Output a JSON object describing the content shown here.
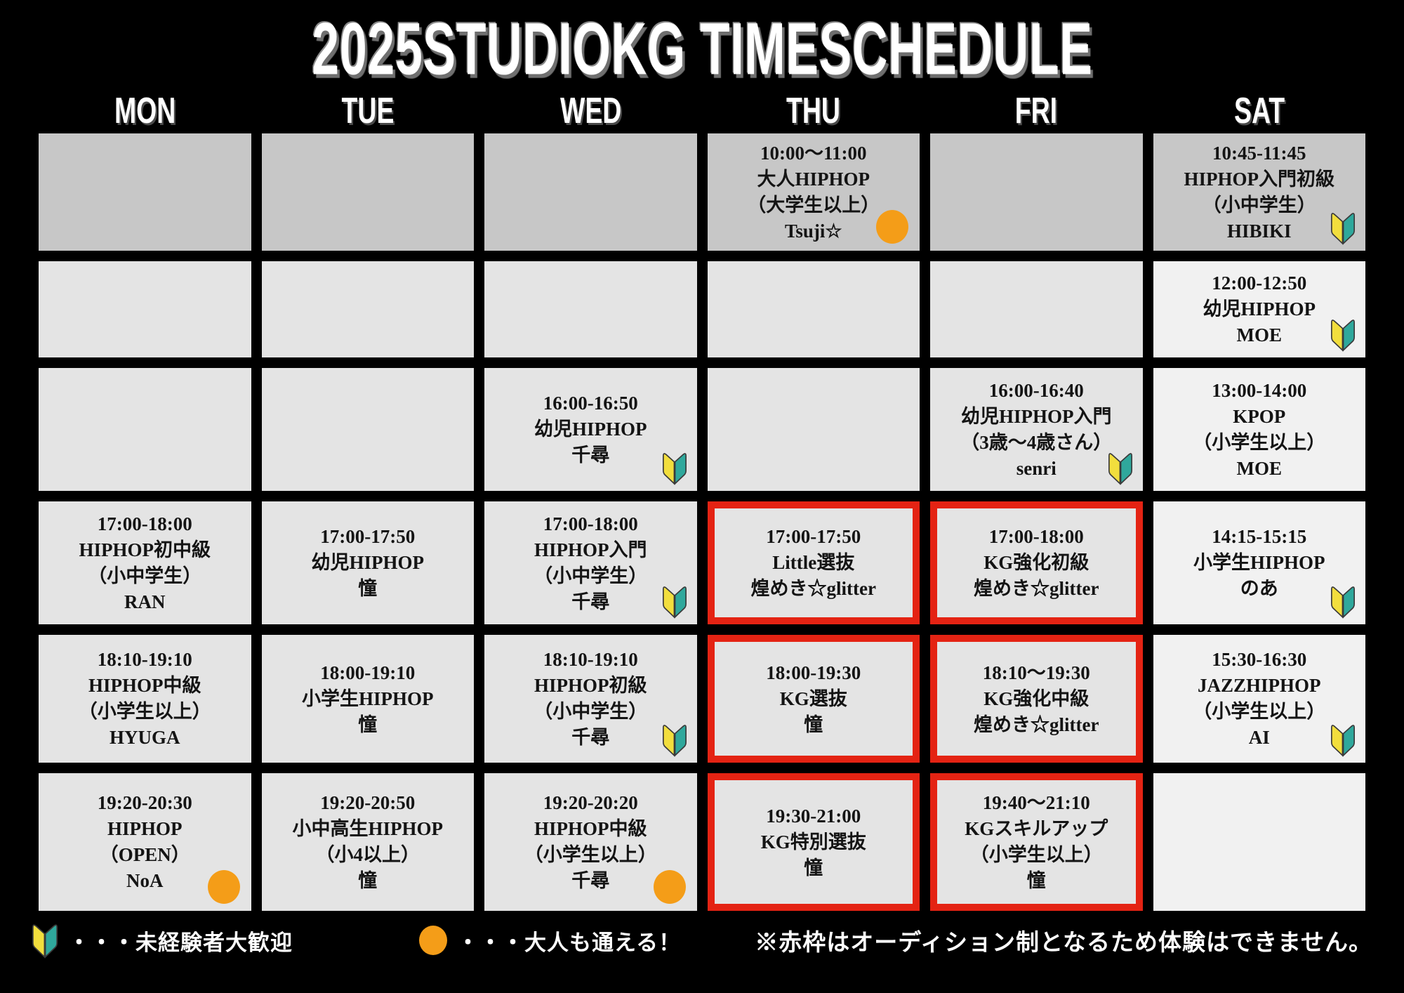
{
  "title": "2025STUDIOKG TIMESCHEDULE",
  "days": [
    "MON",
    "TUE",
    "WED",
    "THU",
    "FRI",
    "SAT"
  ],
  "colors": {
    "background": "#000000",
    "cell_dark": "#c7c7c7",
    "cell_mid": "#e4e4e4",
    "cell_light": "#f1f1f1",
    "highlight_red": "#e42313",
    "adult_orange": "#f49d18",
    "beginner_yellow": "#f2de3d",
    "beginner_teal": "#2fa89c",
    "text": "#141414"
  },
  "legend": {
    "beginner_label": "・・・未経験者大歓迎",
    "adult_label": "・・・大人も通える！",
    "note": "※赤枠はオーディション制となるため体験はできません。"
  },
  "grid": {
    "rows": [
      [
        {
          "shade": "dark"
        },
        {
          "shade": "dark"
        },
        {
          "shade": "dark"
        },
        {
          "shade": "dark",
          "lines": [
            "10:00～11:00",
            "大人HIPHOP",
            "（大学生以上）",
            "Tsuji☆"
          ],
          "mark": "adult"
        },
        {
          "shade": "dark"
        },
        {
          "shade": "dark",
          "lines": [
            "10:45-11:45",
            "HIPHOP入門初級",
            "（小中学生）",
            "HIBIKI"
          ],
          "mark": "beginner"
        }
      ],
      [
        {
          "shade": "mid"
        },
        {
          "shade": "mid"
        },
        {
          "shade": "mid"
        },
        {
          "shade": "mid"
        },
        {
          "shade": "mid"
        },
        {
          "shade": "light",
          "lines": [
            "12:00-12:50",
            "幼児HIPHOP",
            "MOE"
          ],
          "mark": "beginner"
        }
      ],
      [
        {
          "shade": "mid"
        },
        {
          "shade": "mid"
        },
        {
          "shade": "mid",
          "lines": [
            "16:00-16:50",
            "幼児HIPHOP",
            "千尋"
          ],
          "mark": "beginner"
        },
        {
          "shade": "mid"
        },
        {
          "shade": "mid",
          "lines": [
            "16:00-16:40",
            "幼児HIPHOP入門",
            "（3歳～4歳さん）",
            "senri"
          ],
          "mark": "beginner"
        },
        {
          "shade": "light",
          "lines": [
            "13:00-14:00",
            "KPOP",
            "（小学生以上）",
            "MOE"
          ]
        }
      ],
      [
        {
          "shade": "mid",
          "lines": [
            "17:00-18:00",
            "HIPHOP初中級",
            "（小中学生）",
            "RAN"
          ]
        },
        {
          "shade": "mid",
          "lines": [
            "17:00-17:50",
            "幼児HIPHOP",
            "憧"
          ]
        },
        {
          "shade": "mid",
          "lines": [
            "17:00-18:00",
            "HIPHOP入門",
            "（小中学生）",
            "千尋"
          ],
          "mark": "beginner"
        },
        {
          "shade": "mid",
          "lines": [
            "17:00-17:50",
            "Little選抜",
            "煌めき☆glitter"
          ],
          "highlight": true
        },
        {
          "shade": "mid",
          "lines": [
            "17:00-18:00",
            "KG強化初級",
            "煌めき☆glitter"
          ],
          "highlight": true
        },
        {
          "shade": "light",
          "lines": [
            "14:15-15:15",
            "小学生HIPHOP",
            "のあ"
          ],
          "mark": "beginner"
        }
      ],
      [
        {
          "shade": "mid",
          "lines": [
            "18:10-19:10",
            "HIPHOP中級",
            "（小学生以上）",
            "HYUGA"
          ]
        },
        {
          "shade": "mid",
          "lines": [
            "18:00-19:10",
            "小学生HIPHOP",
            "憧"
          ]
        },
        {
          "shade": "mid",
          "lines": [
            "18:10-19:10",
            "HIPHOP初級",
            "（小中学生）",
            "千尋"
          ],
          "mark": "beginner"
        },
        {
          "shade": "mid",
          "lines": [
            "18:00-19:30",
            "KG選抜",
            "憧"
          ],
          "highlight": true
        },
        {
          "shade": "mid",
          "lines": [
            "18:10～19:30",
            "KG強化中級",
            "煌めき☆glitter"
          ],
          "highlight": true
        },
        {
          "shade": "light",
          "lines": [
            "15:30-16:30",
            "JAZZHIPHOP",
            "（小学生以上）",
            "AI"
          ],
          "mark": "beginner"
        }
      ],
      [
        {
          "shade": "mid",
          "lines": [
            "19:20-20:30",
            "HIPHOP",
            "（OPEN）",
            "NoA"
          ],
          "mark": "adult"
        },
        {
          "shade": "mid",
          "lines": [
            "19:20-20:50",
            "小中高生HIPHOP",
            "（小4以上）",
            "憧"
          ]
        },
        {
          "shade": "mid",
          "lines": [
            "19:20-20:20",
            "HIPHOP中級",
            "（小学生以上）",
            "千尋"
          ],
          "mark": "adult"
        },
        {
          "shade": "mid",
          "lines": [
            "19:30-21:00",
            "KG特別選抜",
            "憧"
          ],
          "highlight": true
        },
        {
          "shade": "mid",
          "lines": [
            "19:40～21:10",
            "KGスキルアップ",
            "（小学生以上）",
            "憧"
          ],
          "highlight": true
        },
        {
          "shade": "light"
        }
      ]
    ]
  }
}
